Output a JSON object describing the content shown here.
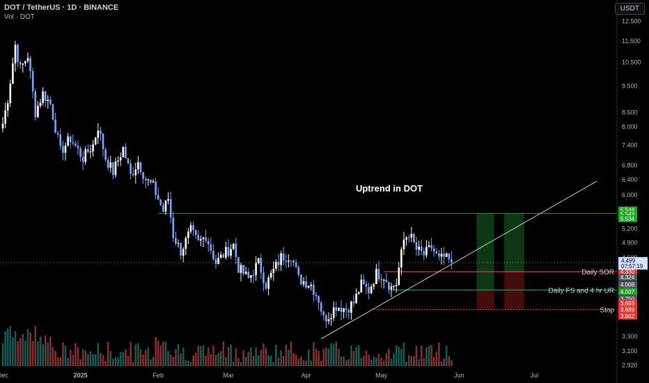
{
  "header": {
    "symbol_line": "DOT / TetherUS · 1D · BINANCE",
    "volume_label": "Vol · DOT",
    "currency": "USDT"
  },
  "chart_data": {
    "type": "candlestick",
    "title": "Uptrend in DOT",
    "price_scale": "log",
    "ylim": [
      2.85,
      13.1
    ],
    "y_ticks": [
      12.5,
      11.5,
      10.5,
      9.5,
      8.5,
      8.0,
      7.4,
      6.8,
      6.4,
      6.0,
      5.2,
      4.9,
      4.6,
      3.3,
      3.1,
      2.92
    ],
    "y_tick_labels": [
      "12.500",
      "11.500",
      "10.500",
      "9.500",
      "8.500",
      "8.000",
      "7.400",
      "6.800",
      "6.400",
      "6.000",
      "5.200",
      "4.900",
      "4.600",
      "3.300",
      "3.100",
      "2.920"
    ],
    "x_range": [
      "2024-12-01",
      "2025-07-26"
    ],
    "x_ticks": [
      {
        "date": "2024-12-01",
        "label": "Dec"
      },
      {
        "date": "2025-01-01",
        "label": "2025"
      },
      {
        "date": "2025-02-01",
        "label": "Feb"
      },
      {
        "date": "2025-03-01",
        "label": "Mar"
      },
      {
        "date": "2025-04-01",
        "label": "Apr"
      },
      {
        "date": "2025-05-01",
        "label": "May"
      },
      {
        "date": "2025-06-01",
        "label": "Jun"
      },
      {
        "date": "2025-07-01",
        "label": "Jul"
      }
    ],
    "candle_up_color": "#ffffff",
    "candle_down_color": "#7aa7ff",
    "anchors": [
      [
        "2024-12-01",
        8.1
      ],
      [
        "2024-12-03",
        9.0
      ],
      [
        "2024-12-06",
        11.3
      ],
      [
        "2024-12-08",
        10.2
      ],
      [
        "2024-12-11",
        10.8
      ],
      [
        "2024-12-14",
        8.5
      ],
      [
        "2024-12-17",
        9.2
      ],
      [
        "2024-12-20",
        8.8
      ],
      [
        "2024-12-24",
        7.2
      ],
      [
        "2024-12-28",
        7.6
      ],
      [
        "2025-01-02",
        7.0
      ],
      [
        "2025-01-06",
        7.4
      ],
      [
        "2025-01-08",
        8.0
      ],
      [
        "2025-01-11",
        7.0
      ],
      [
        "2025-01-14",
        6.6
      ],
      [
        "2025-01-18",
        7.3
      ],
      [
        "2025-01-21",
        6.5
      ],
      [
        "2025-01-24",
        6.9
      ],
      [
        "2025-01-27",
        6.4
      ],
      [
        "2025-01-30",
        6.2
      ],
      [
        "2025-02-03",
        5.6
      ],
      [
        "2025-02-05",
        5.9
      ],
      [
        "2025-02-07",
        5.05
      ],
      [
        "2025-02-10",
        4.72
      ],
      [
        "2025-02-14",
        5.15
      ],
      [
        "2025-02-17",
        4.88
      ],
      [
        "2025-02-20",
        5.05
      ],
      [
        "2025-02-24",
        4.5
      ],
      [
        "2025-02-28",
        4.7
      ],
      [
        "2025-03-03",
        4.85
      ],
      [
        "2025-03-05",
        4.4
      ],
      [
        "2025-03-09",
        4.2
      ],
      [
        "2025-03-13",
        4.5
      ],
      [
        "2025-03-16",
        4.1
      ],
      [
        "2025-03-19",
        4.35
      ],
      [
        "2025-03-22",
        4.6
      ],
      [
        "2025-03-26",
        4.65
      ],
      [
        "2025-03-29",
        4.2
      ],
      [
        "2025-04-03",
        4.1
      ],
      [
        "2025-04-06",
        3.85
      ],
      [
        "2025-04-08",
        3.55
      ],
      [
        "2025-04-10",
        3.6
      ],
      [
        "2025-04-13",
        3.75
      ],
      [
        "2025-04-17",
        3.7
      ],
      [
        "2025-04-20",
        3.8
      ],
      [
        "2025-04-23",
        4.1
      ],
      [
        "2025-04-26",
        4.0
      ],
      [
        "2025-04-29",
        4.3
      ],
      [
        "2025-05-02",
        4.25
      ],
      [
        "2025-05-05",
        4.05
      ],
      [
        "2025-05-07",
        4.12
      ],
      [
        "2025-05-08",
        4.4
      ],
      [
        "2025-05-10",
        4.95
      ],
      [
        "2025-05-12",
        5.1
      ],
      [
        "2025-05-15",
        4.75
      ],
      [
        "2025-05-18",
        4.65
      ],
      [
        "2025-05-21",
        4.8
      ],
      [
        "2025-05-24",
        4.55
      ],
      [
        "2025-05-26",
        4.6
      ],
      [
        "2025-05-29",
        4.499
      ]
    ],
    "current_price": 4.499,
    "countdown": "07:57:19",
    "trendline": {
      "from": [
        "2025-04-07",
        3.26
      ],
      "to": [
        "2025-07-26",
        6.35
      ],
      "color": "#cfcfcf"
    },
    "horizontal_lines": [
      {
        "price": 5.54,
        "from": "2025-02-01",
        "color": "#3d7a3d"
      },
      {
        "price": 4.33,
        "from": "2025-05-02",
        "color": "#e05a5a",
        "label": "Daily SOR"
      },
      {
        "price": 4.008,
        "from": "2025-05-04",
        "color": "#4e9d6e",
        "label": "Daily FS and 4 hr UR"
      },
      {
        "price": 3.69,
        "from": "2025-04-28",
        "color": "#e05a5a",
        "dashed": true,
        "label": "Stop"
      }
    ],
    "positions": [
      {
        "from": "2025-06-08",
        "to": "2025-06-15",
        "entry": 4.008,
        "target": 5.54,
        "stop": 3.69
      },
      {
        "from": "2025-06-19",
        "to": "2025-06-27",
        "entry": 4.33,
        "target": 5.54,
        "stop": 3.69
      }
    ],
    "price_labels": [
      {
        "text": "5.544",
        "price": 5.62,
        "bg": "#26a629"
      },
      {
        "text": "5.543",
        "price": 5.52,
        "bg": "#26a629"
      },
      {
        "text": "5.534",
        "price": 5.42,
        "bg": "#26a629"
      },
      {
        "text": "4.330",
        "price": 4.33,
        "bg": "#e53935"
      },
      {
        "text": "4.324",
        "price": 4.23,
        "bg": "#555a62"
      },
      {
        "text": "4.008",
        "price": 4.1,
        "bg": "#555a62"
      },
      {
        "text": "4.007",
        "price": 3.98,
        "bg": "#26a629"
      },
      {
        "text": "3.750",
        "price": 3.86,
        "bg": "#555a62"
      },
      {
        "text": "3.693",
        "price": 3.79,
        "bg": "#e53935"
      },
      {
        "text": "3.689",
        "price": 3.69,
        "bg": "#e53935"
      },
      {
        "text": "3.682",
        "price": 3.59,
        "bg": "#e53935"
      }
    ],
    "volume_up_color": "#26a69a",
    "volume_down_color": "#ef5350"
  }
}
